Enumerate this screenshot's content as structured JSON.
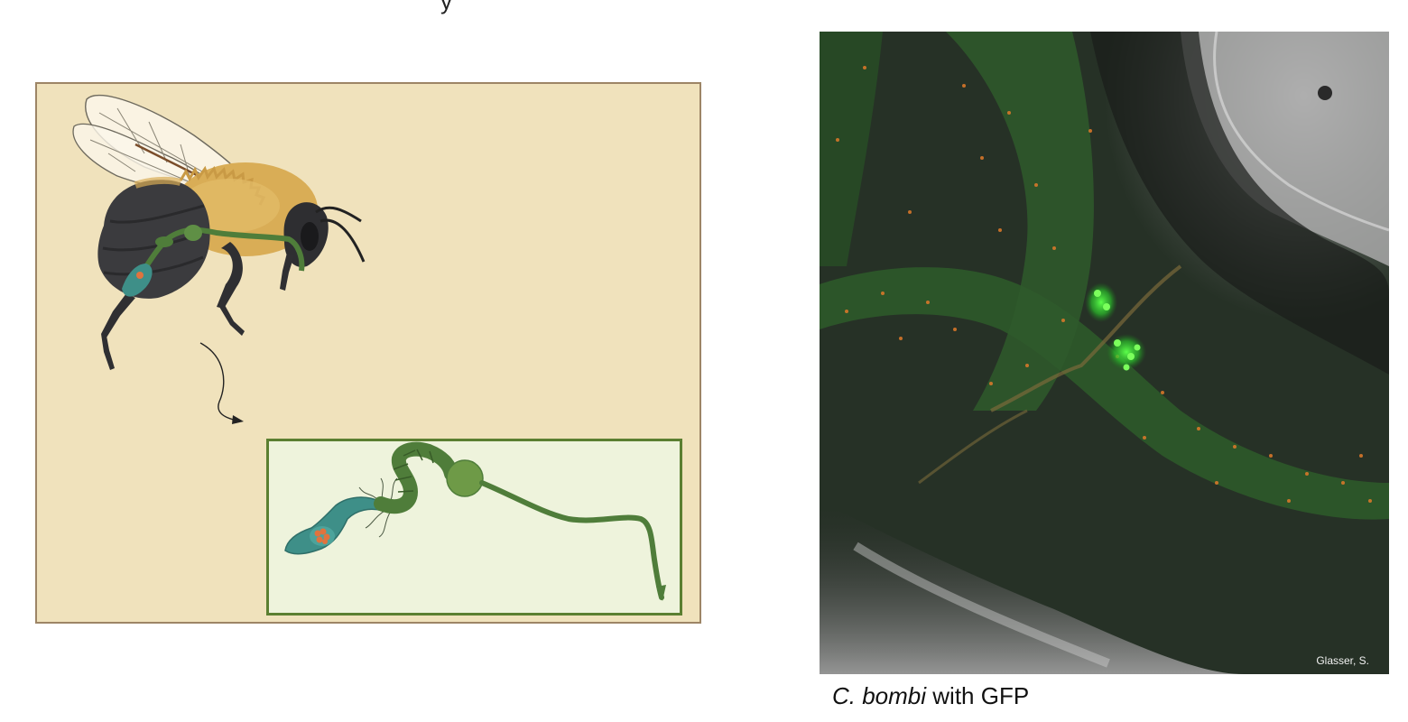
{
  "figure": {
    "micrograph_credit": "Glasser, S.",
    "caption_species": "C. bombi",
    "caption_rest": " with GFP"
  },
  "colors": {
    "panel_bg": "#f0e2bc",
    "panel_border": "#9d8566",
    "inset_bg": "#eef3dc",
    "inset_border": "#5b7f31",
    "gut_green": "#4f7d3a",
    "parasite_teal": "#3e8f88",
    "crithidia_orange": "#e0733e",
    "gfp_green": "#39e03a"
  },
  "icons": [
    "bee-illustration",
    "curved-arrow-icon",
    "bee-gut-diagram",
    "gfp-fluorescence-micrograph"
  ]
}
